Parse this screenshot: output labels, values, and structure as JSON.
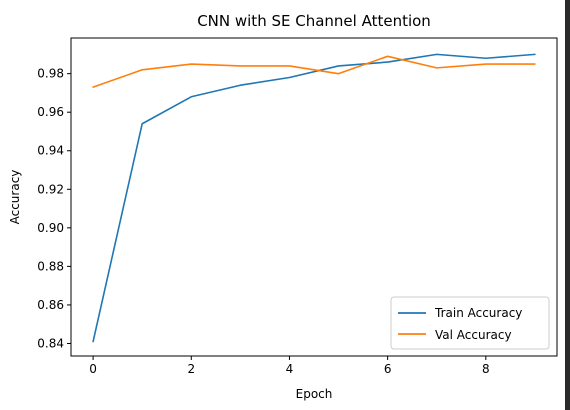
{
  "chart_data": {
    "type": "line",
    "title": "CNN with SE Channel Attention",
    "xlabel": "Epoch",
    "ylabel": "Accuracy",
    "x": [
      0,
      1,
      2,
      3,
      4,
      5,
      6,
      7,
      8,
      9
    ],
    "xlim": [
      -0.45,
      9.45
    ],
    "ylim": [
      0.8335,
      0.9985
    ],
    "xticks": [
      0,
      2,
      4,
      6,
      8
    ],
    "xtick_labels": [
      "0",
      "2",
      "4",
      "6",
      "8"
    ],
    "yticks": [
      0.84,
      0.86,
      0.88,
      0.9,
      0.92,
      0.94,
      0.96,
      0.98
    ],
    "ytick_labels": [
      "0.84",
      "0.86",
      "0.88",
      "0.90",
      "0.92",
      "0.94",
      "0.96",
      "0.98"
    ],
    "grid": false,
    "legend_position": "lower-right",
    "series": [
      {
        "name": "Train Accuracy",
        "color": "#1f77b4",
        "values": [
          0.841,
          0.954,
          0.968,
          0.974,
          0.978,
          0.984,
          0.986,
          0.99,
          0.988,
          0.99
        ]
      },
      {
        "name": "Val Accuracy",
        "color": "#ff7f0e",
        "values": [
          0.973,
          0.982,
          0.985,
          0.984,
          0.984,
          0.98,
          0.989,
          0.983,
          0.985,
          0.985
        ]
      }
    ]
  }
}
